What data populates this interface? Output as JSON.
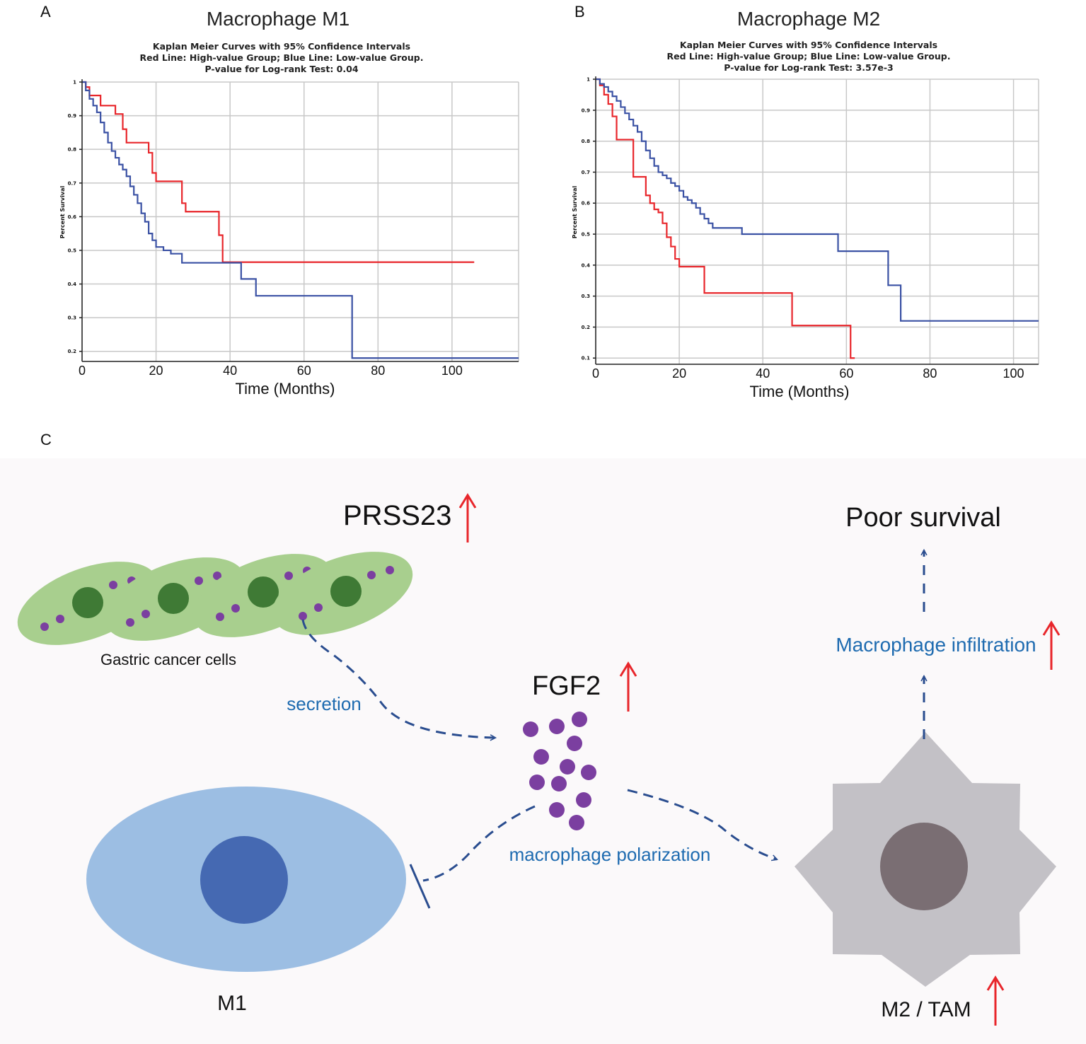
{
  "panels": {
    "a": "A",
    "b": "B",
    "c": "C"
  },
  "chart_data": [
    {
      "type": "line",
      "title": "Macrophage  M1",
      "subtitle": [
        "Kaplan Meier Curves with 95% Confidence Intervals",
        "Red Line: High-value Group; Blue Line: Low-value Group.",
        "P-value for Log-rank Test: 0.04"
      ],
      "xlabel": "Time (Months)",
      "ylabel": "Percent Survival",
      "xlim": [
        0,
        118
      ],
      "ylim": [
        0.17,
        1.0
      ],
      "xticks": [
        0,
        20,
        40,
        60,
        80,
        100
      ],
      "yticks": [
        0.2,
        0.3,
        0.4,
        0.5,
        0.6,
        0.7,
        0.8,
        0.9,
        1
      ],
      "ytick_labels": [
        "0.2",
        "0.3",
        "0.4",
        "0.5",
        "0.6",
        "0.7",
        "0.8",
        "0.9",
        "1"
      ],
      "series": [
        {
          "name": "High-value Group",
          "color": "#e8262b",
          "x": [
            0,
            1,
            2,
            5,
            9,
            11,
            12,
            18,
            19,
            20,
            27,
            28,
            37,
            38,
            44,
            106
          ],
          "y": [
            1.0,
            0.985,
            0.96,
            0.93,
            0.905,
            0.86,
            0.82,
            0.79,
            0.73,
            0.705,
            0.64,
            0.615,
            0.545,
            0.465,
            0.465,
            0.465
          ]
        },
        {
          "name": "Low-value Group",
          "color": "#3a51a4",
          "x": [
            0,
            1,
            2,
            3,
            4,
            5,
            6,
            7,
            8,
            9,
            10,
            11,
            12,
            13,
            14,
            15,
            16,
            17,
            18,
            19,
            20,
            22,
            24,
            27,
            35,
            43,
            47,
            73,
            118
          ],
          "y": [
            1.0,
            0.975,
            0.95,
            0.93,
            0.91,
            0.88,
            0.85,
            0.82,
            0.795,
            0.775,
            0.755,
            0.74,
            0.72,
            0.69,
            0.665,
            0.64,
            0.61,
            0.585,
            0.55,
            0.53,
            0.51,
            0.5,
            0.49,
            0.463,
            0.463,
            0.415,
            0.365,
            0.18,
            0.18
          ]
        }
      ]
    },
    {
      "type": "line",
      "title": "Macrophage  M2",
      "subtitle": [
        "Kaplan Meier Curves with 95% Confidence Intervals",
        "Red Line: High-value Group; Blue Line: Low-value Group.",
        "P-value for Log-rank Test: 3.57e-3"
      ],
      "xlabel": "Time (Months)",
      "ylabel": "Percent Survival",
      "xlim": [
        0,
        106
      ],
      "ylim": [
        0.08,
        1.0
      ],
      "xticks": [
        0,
        20,
        40,
        60,
        80,
        100
      ],
      "yticks": [
        0.1,
        0.2,
        0.3,
        0.4,
        0.5,
        0.6,
        0.7,
        0.8,
        0.9,
        1
      ],
      "ytick_labels": [
        "0.1",
        "0.2",
        "0.3",
        "0.4",
        "0.5",
        "0.6",
        "0.7",
        "0.8",
        "0.9",
        "1"
      ],
      "series": [
        {
          "name": "High-value Group",
          "color": "#e8262b",
          "x": [
            0,
            1,
            2,
            3,
            4,
            5,
            9,
            12,
            13,
            14,
            15,
            16,
            17,
            18,
            19,
            20,
            26,
            27,
            46,
            47,
            60,
            61,
            62
          ],
          "y": [
            1.0,
            0.98,
            0.95,
            0.92,
            0.88,
            0.805,
            0.685,
            0.625,
            0.6,
            0.58,
            0.57,
            0.535,
            0.49,
            0.46,
            0.42,
            0.395,
            0.31,
            0.31,
            0.31,
            0.205,
            0.205,
            0.1,
            0.1
          ]
        },
        {
          "name": "Low-value Group",
          "color": "#3a51a4",
          "x": [
            0,
            1,
            2,
            3,
            4,
            5,
            6,
            7,
            8,
            9,
            10,
            11,
            12,
            13,
            14,
            15,
            16,
            17,
            18,
            19,
            20,
            21,
            22,
            23,
            24,
            25,
            26,
            27,
            28,
            30,
            35,
            58,
            70,
            73,
            106
          ],
          "y": [
            1.0,
            0.985,
            0.975,
            0.96,
            0.945,
            0.93,
            0.91,
            0.89,
            0.87,
            0.85,
            0.83,
            0.8,
            0.77,
            0.745,
            0.72,
            0.7,
            0.69,
            0.68,
            0.665,
            0.655,
            0.64,
            0.62,
            0.61,
            0.6,
            0.585,
            0.565,
            0.55,
            0.535,
            0.52,
            0.52,
            0.5,
            0.445,
            0.335,
            0.22,
            0.22
          ]
        }
      ]
    }
  ],
  "diagram": {
    "prss23": "PRSS23",
    "gastric": "Gastric cancer cells",
    "secretion": "secretion",
    "fgf2": "FGF2",
    "polarization": "macrophage polarization",
    "infiltration": "Macrophage infiltration",
    "poor_survival": "Poor survival",
    "m1": "M1",
    "m2": "M2 / TAM",
    "colors": {
      "cell_fill": "#a8cf8e",
      "nucleus": "#3f7a35",
      "dot": "#7b3fa0",
      "m1_body": "#9cbee3",
      "m1_nucleus": "#4569b2",
      "m2_body": "#c3c1c6",
      "m2_nucleus": "#7a6e73",
      "up_arrow": "#e8262b",
      "dash": "#2a4d8f",
      "bg": "#fbf9fa"
    }
  }
}
